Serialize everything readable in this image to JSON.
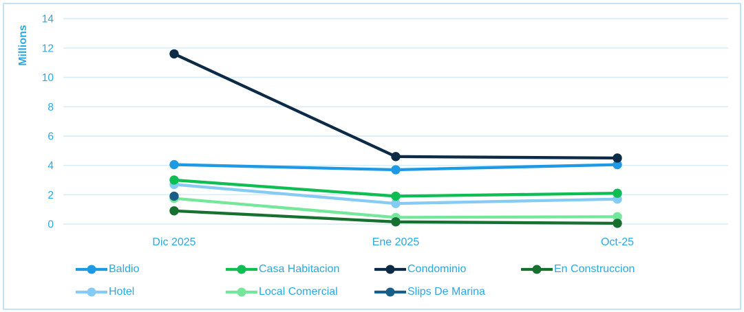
{
  "chart_data": {
    "type": "line",
    "title": "",
    "xlabel": "",
    "ylabel": "Millions",
    "categories": [
      "Dic 2025",
      "Ene 2025",
      "Oct-25"
    ],
    "series": [
      {
        "name": "Baldio",
        "color": "#1D9AE3",
        "values": [
          4.05,
          3.7,
          4.05
        ]
      },
      {
        "name": "Casa Habitacion",
        "color": "#0EBE53",
        "values": [
          3.0,
          1.9,
          2.1
        ]
      },
      {
        "name": "Condominio",
        "color": "#0D2B47",
        "values": [
          11.6,
          4.6,
          4.5
        ]
      },
      {
        "name": "En Construccion",
        "color": "#177030",
        "values": [
          0.9,
          0.15,
          0.05
        ]
      },
      {
        "name": "Hotel",
        "color": "#85CBF3",
        "values": [
          2.7,
          1.4,
          1.7
        ]
      },
      {
        "name": "Local Comercial",
        "color": "#74E79A",
        "values": [
          1.75,
          0.45,
          0.5
        ]
      },
      {
        "name": "Slips De Marina",
        "color": "#175E89",
        "values": [
          1.9,
          null,
          null
        ]
      }
    ],
    "ylim": [
      0,
      14
    ],
    "yticks": [
      0,
      2,
      4,
      6,
      8,
      10,
      12,
      14
    ],
    "grid": true,
    "legend_position": "bottom"
  },
  "style": {
    "accent_text": "#29A9E3",
    "gridline_color": "#D5ECFA",
    "frame_border_color": "#BFE3F7",
    "background_color": "#FFFFFF"
  }
}
